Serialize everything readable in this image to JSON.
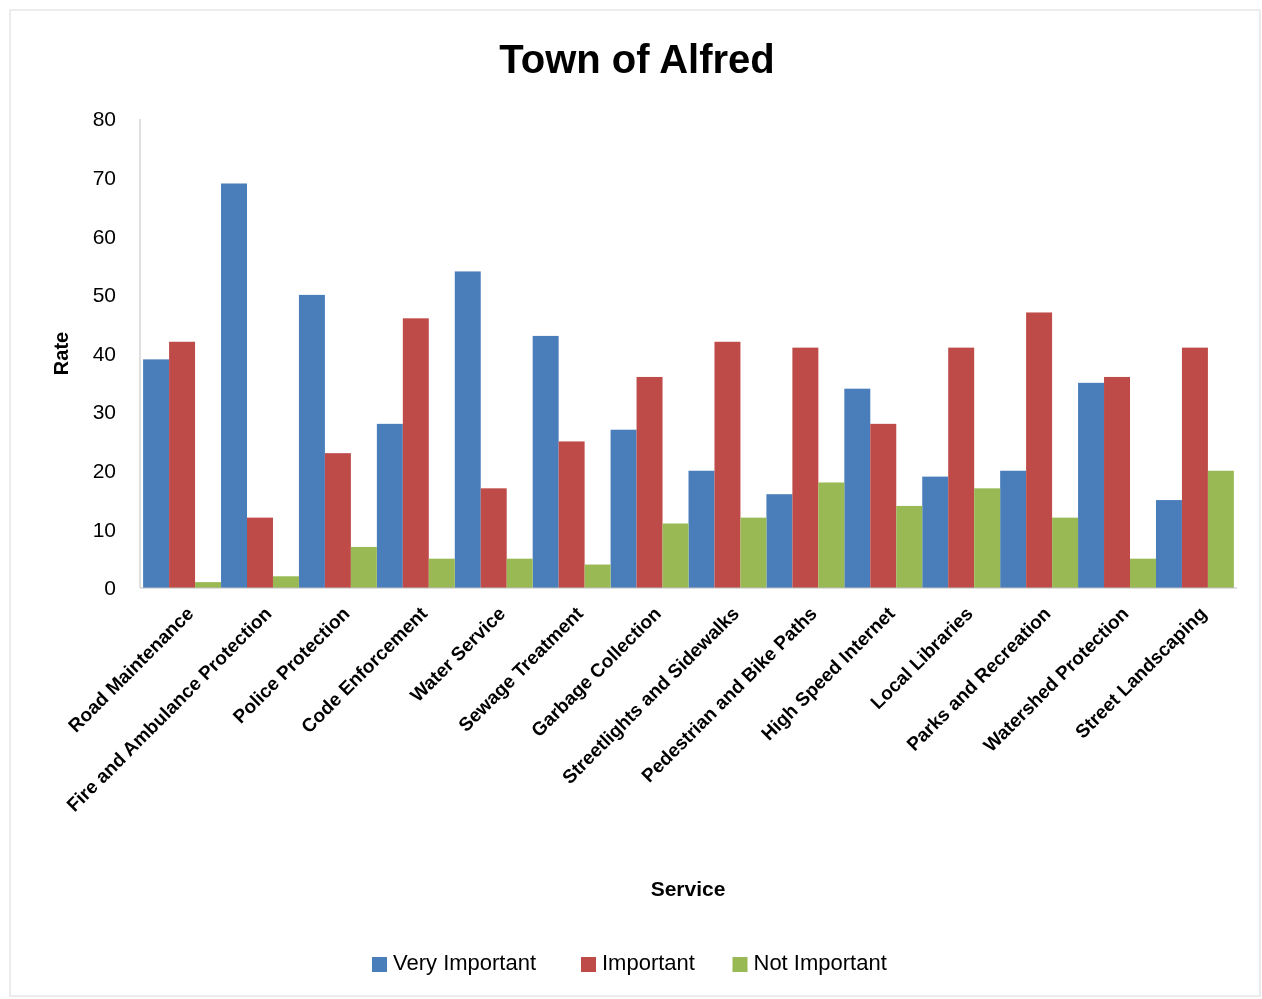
{
  "chart_data": {
    "type": "bar",
    "title": "Town of Alfred",
    "xlabel": "Service",
    "ylabel": "Rate",
    "categories": [
      "Road Maintenance",
      "Fire and Ambulance Protection",
      "Police Protection",
      "Code Enforcement",
      "Water Service",
      "Sewage Treatment",
      "Garbage Collection",
      "Streetlights and Sidewalks",
      "Pedestrian and Bike Paths",
      "High Speed Internet",
      "Local Libraries",
      "Parks and Recreation",
      "Watershed Protection",
      "Street Landscaping"
    ],
    "series": [
      {
        "name": "Very Important",
        "color": "#4a7ebb",
        "values": [
          39,
          69,
          50,
          28,
          54,
          43,
          27,
          20,
          16,
          34,
          19,
          20,
          35,
          15
        ]
      },
      {
        "name": "Important",
        "color": "#be4b48",
        "values": [
          42,
          12,
          23,
          46,
          17,
          25,
          36,
          42,
          41,
          28,
          41,
          47,
          36,
          41
        ]
      },
      {
        "name": "Not Important",
        "color": "#98b954",
        "values": [
          1,
          2,
          7,
          5,
          5,
          4,
          11,
          12,
          18,
          14,
          17,
          12,
          5,
          20
        ]
      }
    ],
    "ylim": [
      0,
      80
    ],
    "yticks": [
      0,
      10,
      20,
      30,
      40,
      50,
      60,
      70,
      80
    ],
    "grid": false,
    "legend": "bottom"
  }
}
